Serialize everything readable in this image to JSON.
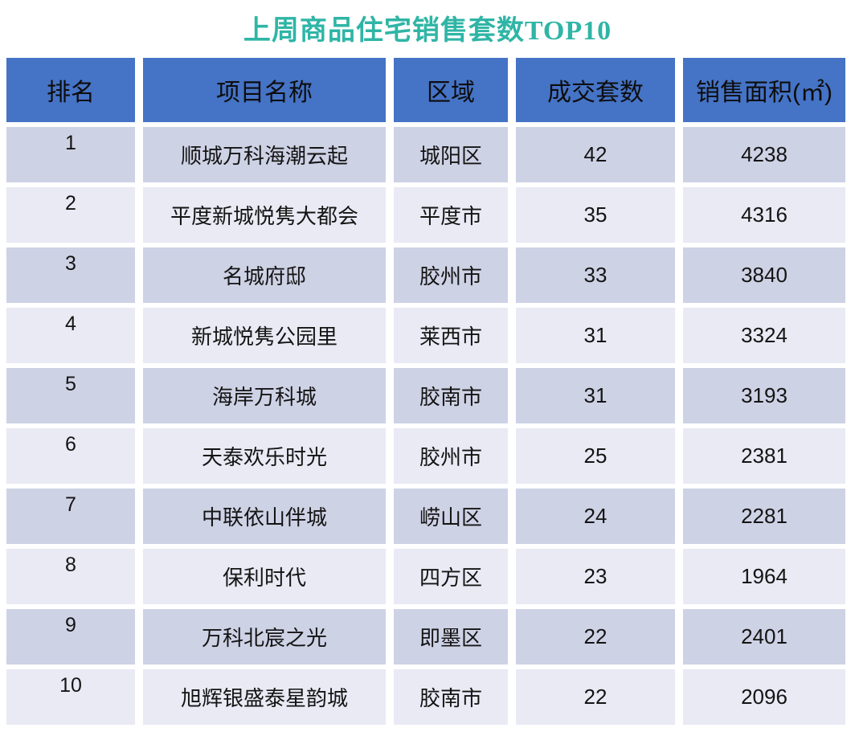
{
  "title": "上周商品住宅销售套数TOP10",
  "colors": {
    "title_teal": "#2FB5A6",
    "header_blue": "#4573C5",
    "row_odd": "#CED2E5",
    "row_even": "#E9EAF4",
    "text_dark": "#141414",
    "background": "#FFFFFF"
  },
  "table": {
    "headers": {
      "rank": "排名",
      "project": "项目名称",
      "district": "区域",
      "units": "成交套数",
      "area": "销售面积(㎡)"
    },
    "rows": [
      {
        "rank": "1",
        "project": "顺城万科海潮云起",
        "district": "城阳区",
        "units": "42",
        "area": "4238"
      },
      {
        "rank": "2",
        "project": "平度新城悦隽大都会",
        "district": "平度市",
        "units": "35",
        "area": "4316"
      },
      {
        "rank": "3",
        "project": "名城府邸",
        "district": "胶州市",
        "units": "33",
        "area": "3840"
      },
      {
        "rank": "4",
        "project": "新城悦隽公园里",
        "district": "莱西市",
        "units": "31",
        "area": "3324"
      },
      {
        "rank": "5",
        "project": "海岸万科城",
        "district": "胶南市",
        "units": "31",
        "area": "3193"
      },
      {
        "rank": "6",
        "project": "天泰欢乐时光",
        "district": "胶州市",
        "units": "25",
        "area": "2381"
      },
      {
        "rank": "7",
        "project": "中联依山伴城",
        "district": "崂山区",
        "units": "24",
        "area": "2281"
      },
      {
        "rank": "8",
        "project": "保利时代",
        "district": "四方区",
        "units": "23",
        "area": "1964"
      },
      {
        "rank": "9",
        "project": "万科北宸之光",
        "district": "即墨区",
        "units": "22",
        "area": "2401"
      },
      {
        "rank": "10",
        "project": "旭辉银盛泰星韵城",
        "district": "胶南市",
        "units": "22",
        "area": "2096"
      }
    ]
  },
  "chart_data": {
    "type": "table",
    "title": "上周商品住宅销售套数TOP10",
    "columns": [
      "排名",
      "项目名称",
      "区域",
      "成交套数",
      "销售面积(㎡)"
    ],
    "rows": [
      [
        1,
        "顺城万科海潮云起",
        "城阳区",
        42,
        4238
      ],
      [
        2,
        "平度新城悦隽大都会",
        "平度市",
        35,
        4316
      ],
      [
        3,
        "名城府邸",
        "胶州市",
        33,
        3840
      ],
      [
        4,
        "新城悦隽公园里",
        "莱西市",
        31,
        3324
      ],
      [
        5,
        "海岸万科城",
        "胶南市",
        31,
        3193
      ],
      [
        6,
        "天泰欢乐时光",
        "胶州市",
        25,
        2381
      ],
      [
        7,
        "中联依山伴城",
        "崂山区",
        24,
        2281
      ],
      [
        8,
        "保利时代",
        "四方区",
        23,
        1964
      ],
      [
        9,
        "万科北宸之光",
        "即墨区",
        22,
        2401
      ],
      [
        10,
        "旭辉银盛泰星韵城",
        "胶南市",
        22,
        2096
      ]
    ]
  }
}
